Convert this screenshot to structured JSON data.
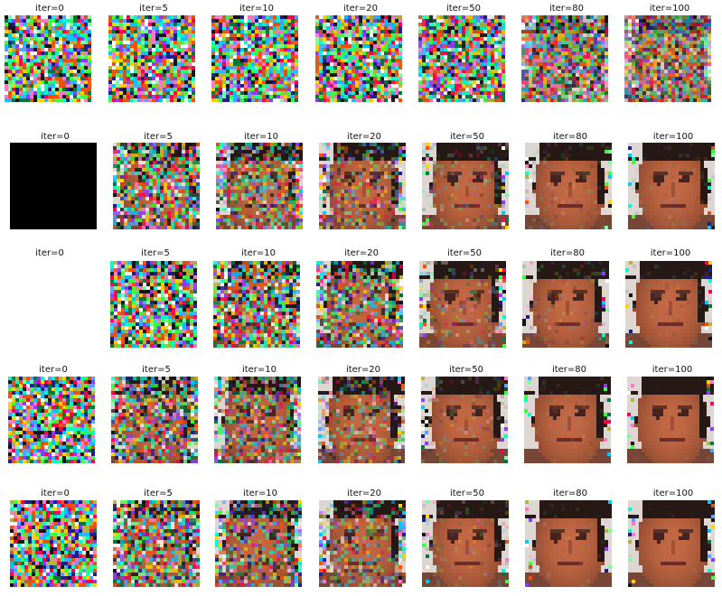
{
  "rows": [
    {
      "labels": [
        "iter=0",
        "iter=5",
        "iter=10",
        "iter=20",
        "iter=50",
        "iter=80",
        "iter=100"
      ],
      "images": [
        "noise",
        "noise",
        "noise",
        "noise",
        "noise",
        "noise",
        "noise"
      ],
      "progress": [
        0.0,
        0.02,
        0.04,
        0.06,
        0.1,
        0.3,
        0.4
      ]
    },
    {
      "labels": [
        "iter=0",
        "iter=5",
        "iter=10",
        "iter=20",
        "iter=50",
        "iter=80",
        "iter=100"
      ],
      "images": [
        "black",
        "noisy-face",
        "noisy-face",
        "noisy-face",
        "face",
        "face",
        "face"
      ],
      "progress": [
        0.0,
        0.2,
        0.35,
        0.5,
        0.75,
        0.85,
        0.9
      ]
    },
    {
      "labels": [
        "iter=0",
        "iter=5",
        "iter=10",
        "iter=20",
        "iter=50",
        "iter=80",
        "iter=100"
      ],
      "images": [
        "blank",
        "noise",
        "noisy-face",
        "noisy-face",
        "face",
        "face",
        "face"
      ],
      "progress": [
        0.0,
        0.05,
        0.15,
        0.3,
        0.7,
        0.8,
        0.88
      ]
    },
    {
      "labels": [
        "iter=0",
        "iter=5",
        "iter=10",
        "iter=20",
        "iter=50",
        "iter=80",
        "iter=100"
      ],
      "images": [
        "noise",
        "noisy-face",
        "noisy-face",
        "noisy-face",
        "face",
        "face",
        "face"
      ],
      "progress": [
        0.0,
        0.25,
        0.4,
        0.55,
        0.8,
        0.9,
        0.95
      ]
    },
    {
      "labels": [
        "iter=0",
        "iter=5",
        "iter=10",
        "iter=20",
        "iter=50",
        "iter=80",
        "iter=100"
      ],
      "images": [
        "noise",
        "noisy-face",
        "noisy-face",
        "noisy-face",
        "face",
        "face",
        "face"
      ],
      "progress": [
        0.0,
        0.2,
        0.35,
        0.5,
        0.8,
        0.9,
        0.95
      ]
    }
  ]
}
